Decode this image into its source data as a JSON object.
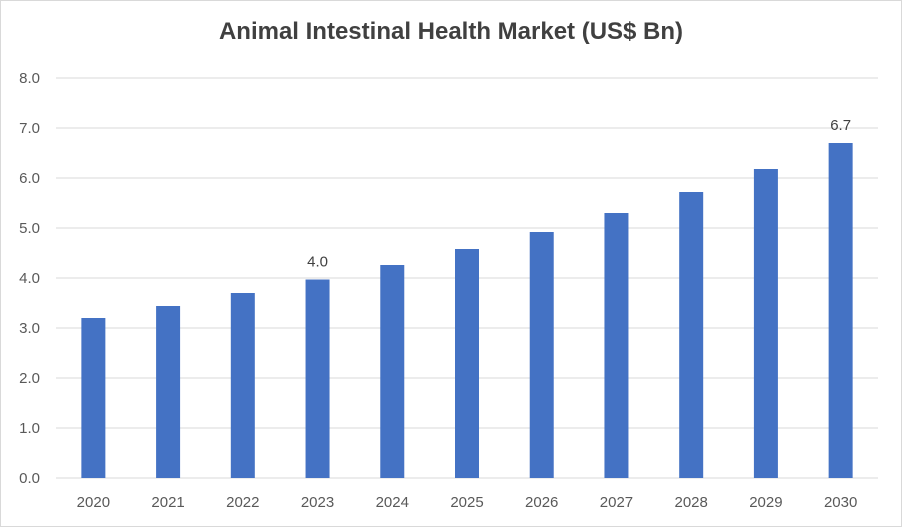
{
  "chart_data": {
    "type": "bar",
    "title": "Animal Intestinal Health Market (US$ Bn)",
    "categories": [
      "2020",
      "2021",
      "2022",
      "2023",
      "2024",
      "2025",
      "2026",
      "2027",
      "2028",
      "2029",
      "2030"
    ],
    "values": [
      3.2,
      3.44,
      3.7,
      3.97,
      4.26,
      4.58,
      4.92,
      5.3,
      5.72,
      6.18,
      6.7
    ],
    "data_labels": [
      {
        "index": 3,
        "text": "4.0"
      },
      {
        "index": 10,
        "text": "6.7"
      }
    ],
    "ylim": [
      0,
      8
    ],
    "yticks": [
      "0.0",
      "1.0",
      "2.0",
      "3.0",
      "4.0",
      "5.0",
      "6.0",
      "7.0",
      "8.0"
    ],
    "xlabel": "",
    "ylabel": "",
    "grid": true,
    "bar_color": "#4472C4",
    "grid_color": "#d9d9d9"
  }
}
